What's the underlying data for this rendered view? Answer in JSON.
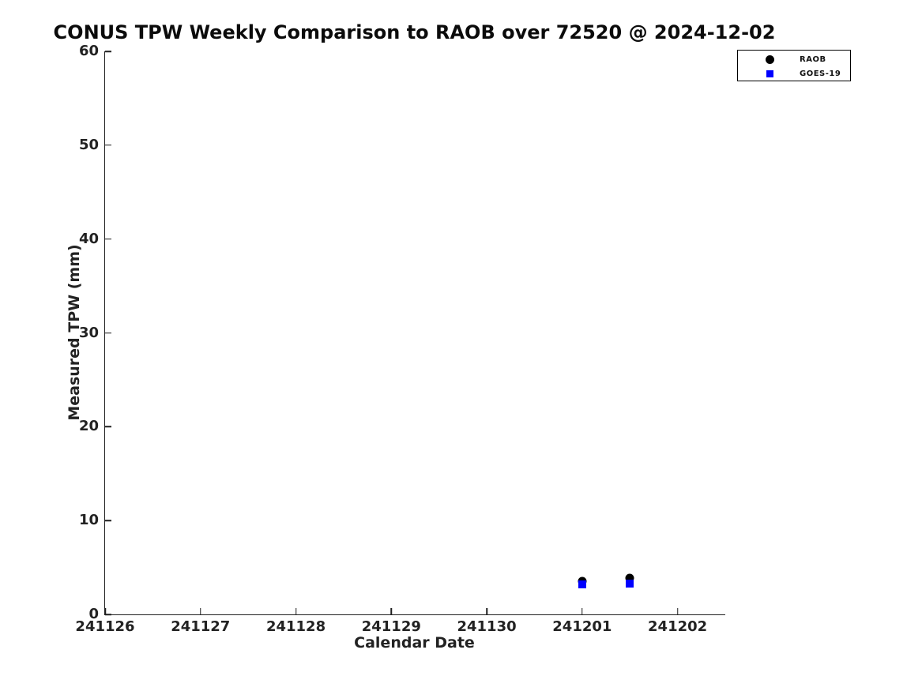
{
  "chart_data": {
    "type": "scatter",
    "title": "CONUS TPW Weekly Comparison to RAOB over 72520 @ 2024-12-02",
    "xlabel": "Calendar Date",
    "ylabel": "Measured TPW (mm)",
    "x_ticks": [
      "241126",
      "241127",
      "241128",
      "241129",
      "241130",
      "241201",
      "241202"
    ],
    "x_span_days": 6.5,
    "y_ticks": [
      0,
      10,
      20,
      30,
      40,
      50,
      60
    ],
    "ylim": [
      0,
      60
    ],
    "grid": false,
    "legend_position": "top-right",
    "series": [
      {
        "name": "RAOB",
        "marker": "circle",
        "color": "#000000",
        "points": [
          {
            "x": "241201.0",
            "tpw": 3.5
          },
          {
            "x": "241201.5",
            "tpw": 3.9
          }
        ]
      },
      {
        "name": "GOES-19",
        "marker": "square",
        "color": "#0000ff",
        "points": [
          {
            "x": "241201.0",
            "tpw": 3.2
          },
          {
            "x": "241201.5",
            "tpw": 3.3
          }
        ]
      }
    ]
  }
}
